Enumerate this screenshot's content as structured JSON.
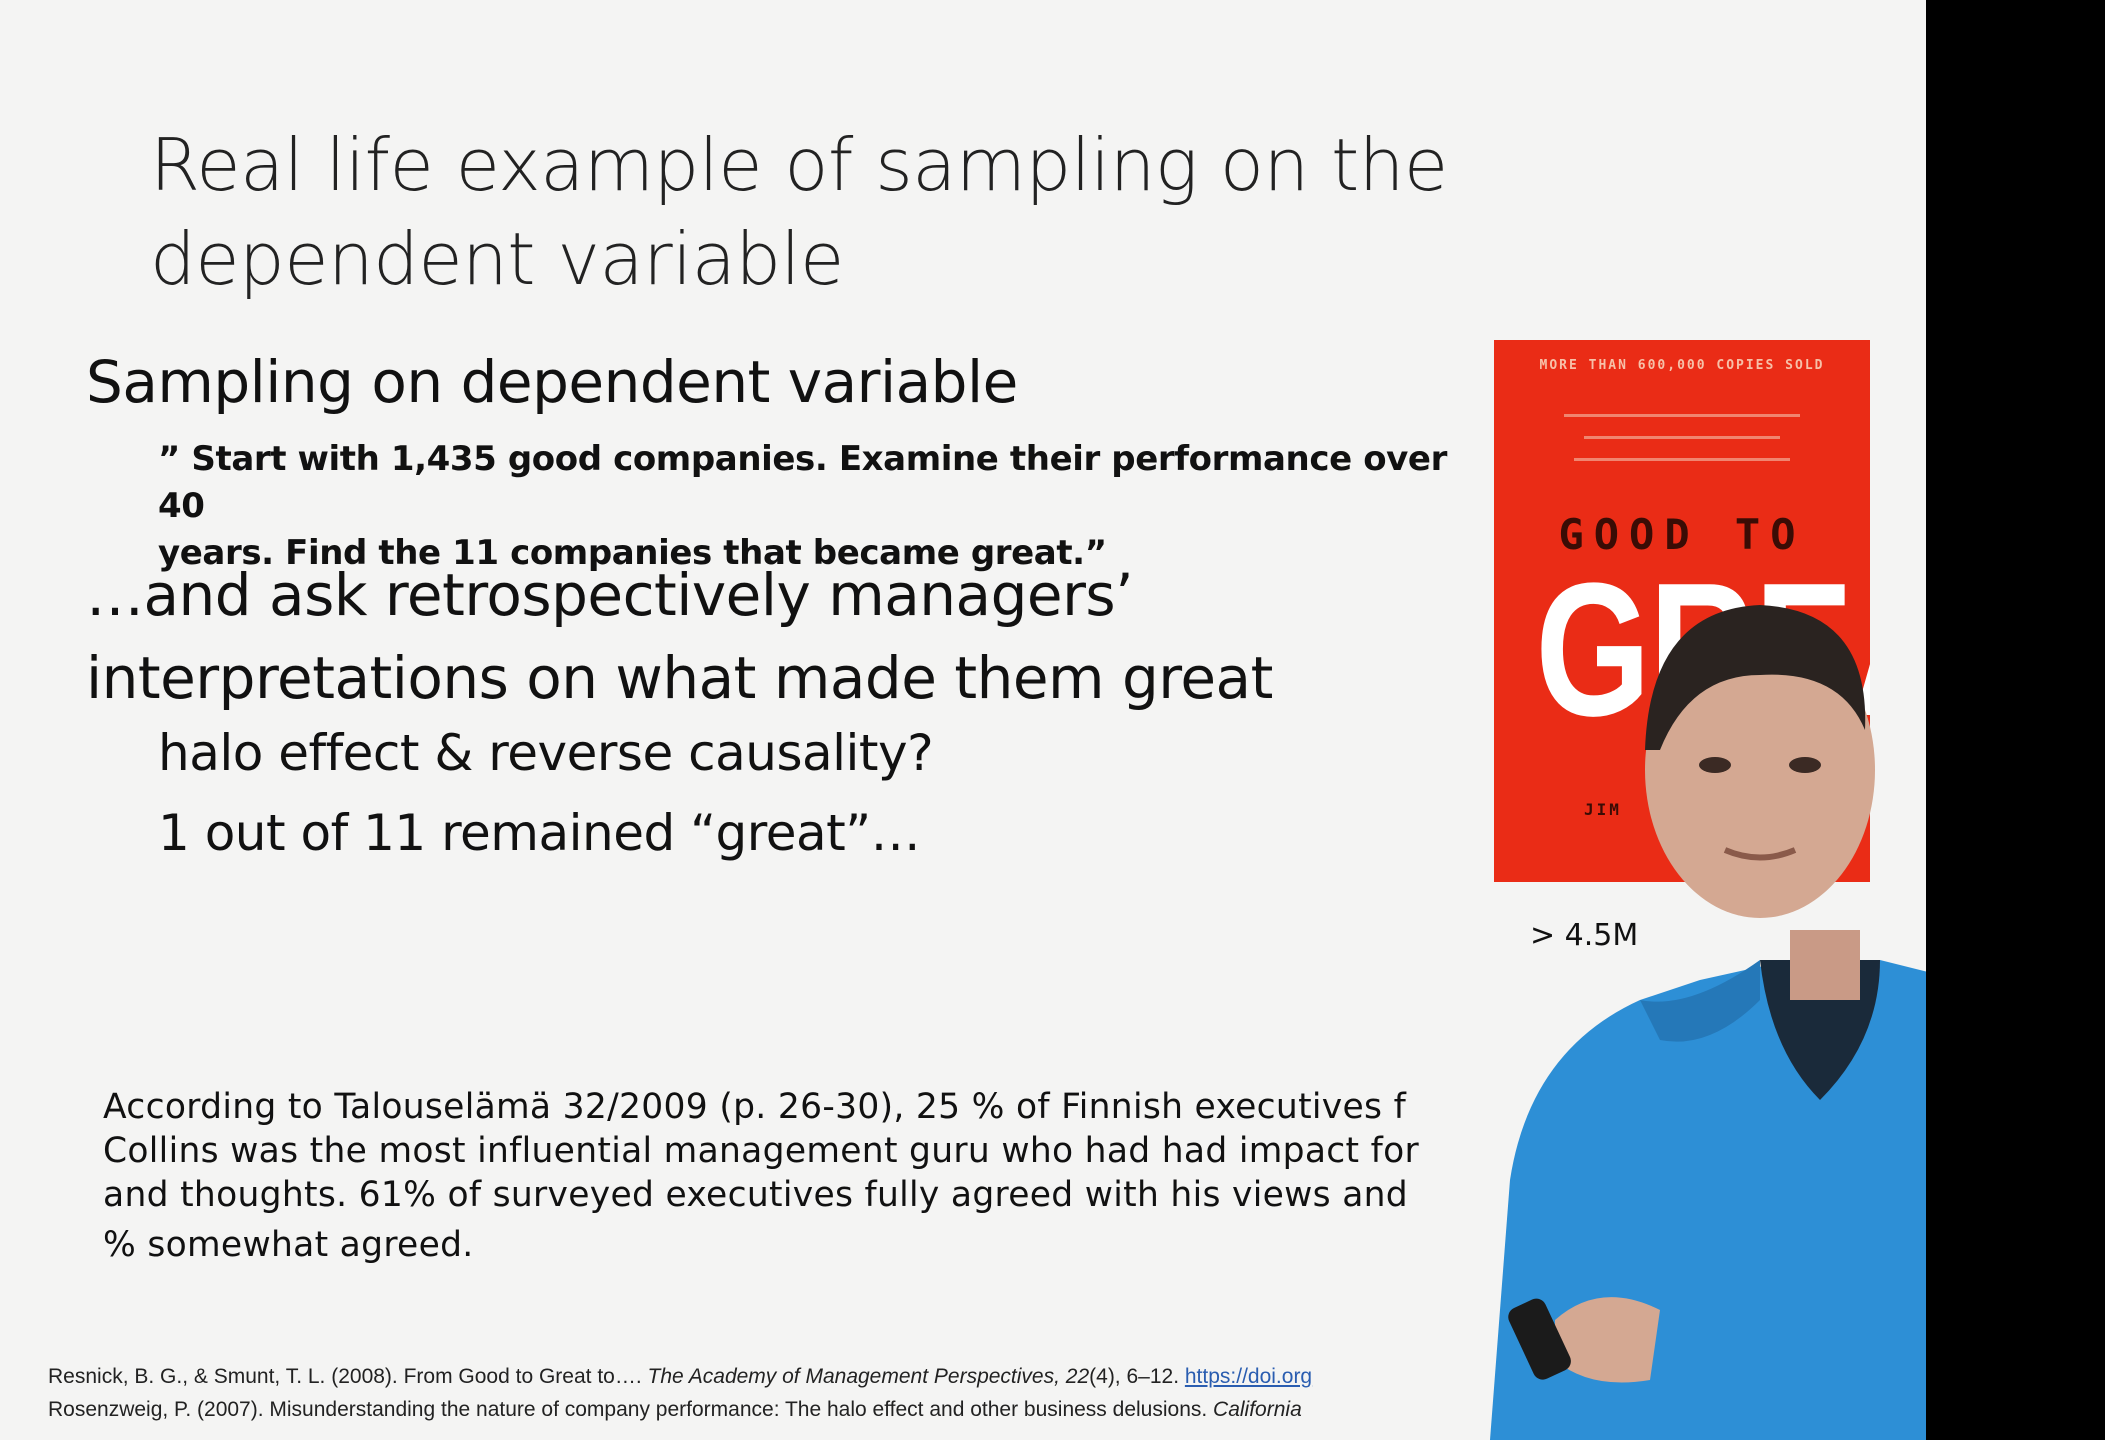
{
  "slide": {
    "title_lines": [
      "Real life example of sampling on the",
      "dependent variable"
    ],
    "bullet1": "Sampling on dependent variable",
    "quote_lines": [
      "” Start with 1,435 good companies. Examine their performance over 40",
      "years. Find the 11 companies that became great.”"
    ],
    "bullet2_lines": [
      "…and ask retrospectively managers’",
      "interpretations on what made them great"
    ],
    "sub1": "halo effect & reverse causality?",
    "sub2": "1 out of 11 remained “great”…",
    "book": {
      "top_text": "MORE THAN 600,000 COPIES SOLD",
      "subtitle": "GOOD TO",
      "main": "GREAT",
      "author": "JIM",
      "color": "#ea2c16"
    },
    "sales_note": "> 4.5M",
    "talous_lines": [
      "According to Talouselämä 32/2009 (p. 26-30), 25 % of Finnish executives f",
      "Collins was the most influential management guru who had had impact for",
      "and thoughts. 61% of surveyed executives fully agreed with his views and",
      "% somewhat agreed."
    ],
    "refs": {
      "ref1_pre": "Resnick, B. G., & Smunt, T. L. (2008). From Good to Great to…. ",
      "ref1_journal": "The Academy of Management Perspectives",
      "ref1_vol": ", 22",
      "ref1_post": "(4), 6–12. ",
      "ref1_link": "https://doi.org",
      "ref2_pre": "Rosenzweig, P. (2007). Misunderstanding the nature of company performance: The halo effect and other business delusions. ",
      "ref2_journal": "California"
    }
  }
}
